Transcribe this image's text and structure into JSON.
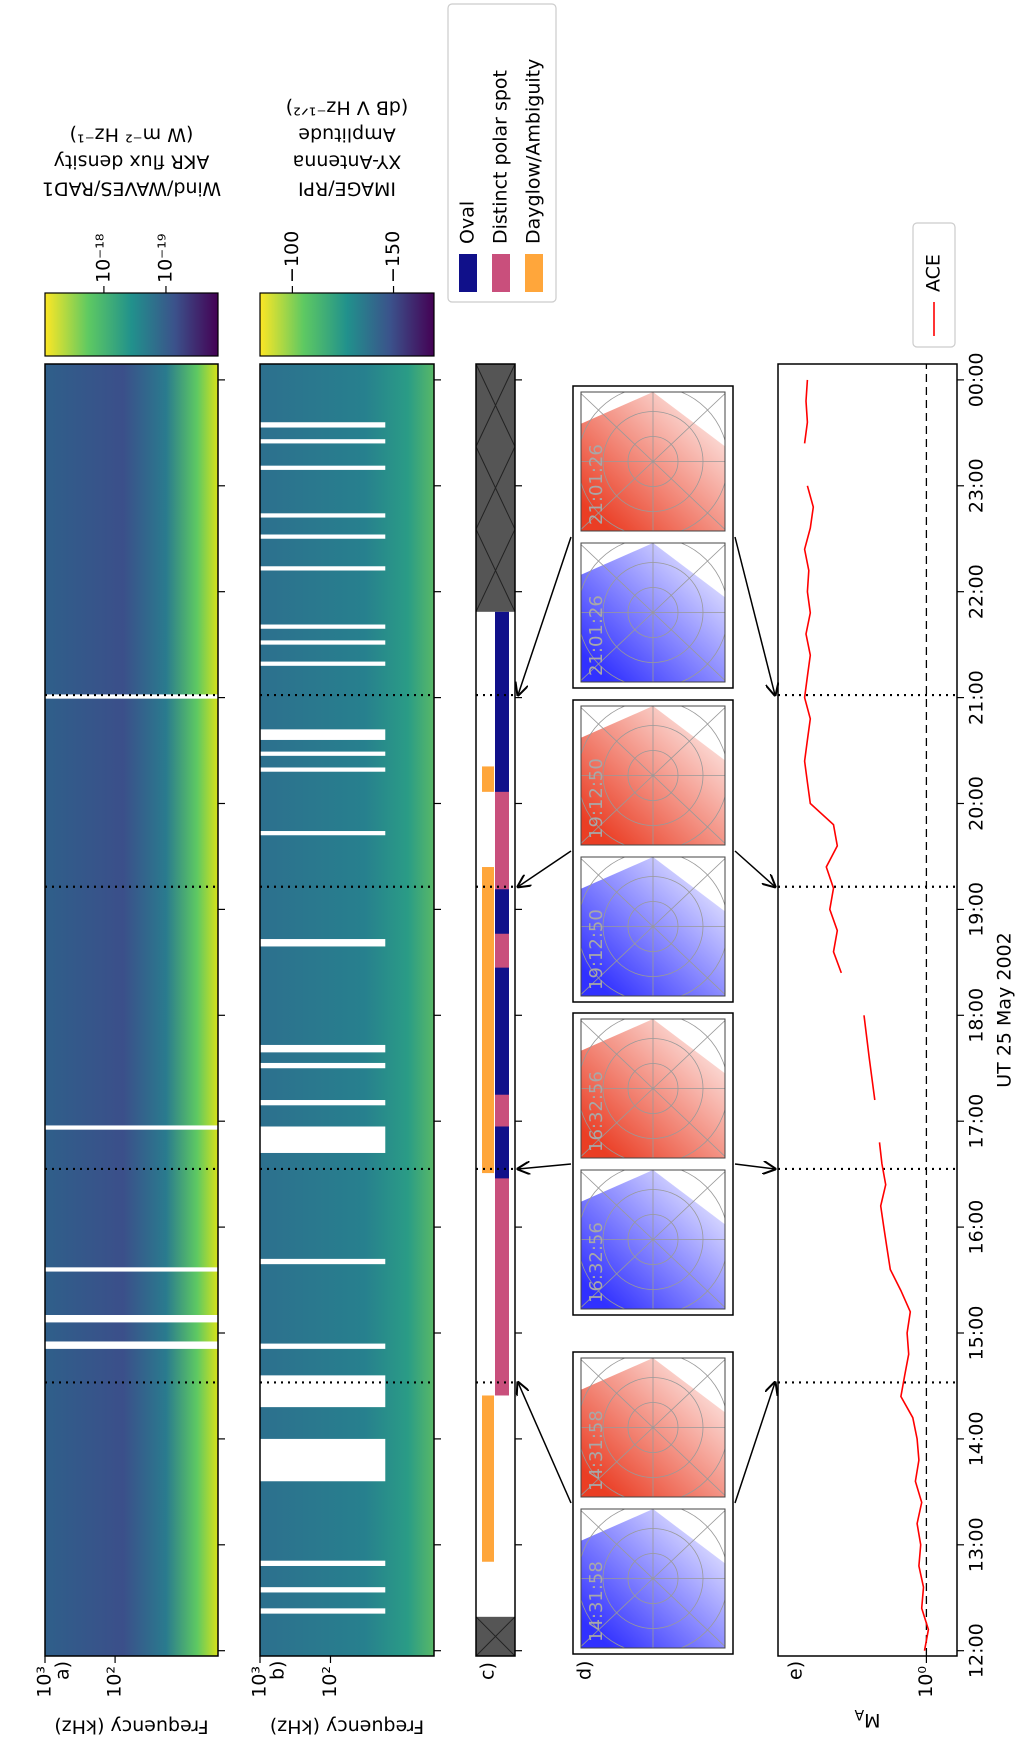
{
  "chart_data": [
    {
      "type": "heatmap",
      "panel_label": "a)",
      "ylabel": "Frequency (kHz)",
      "log_y": true,
      "ylim": [
        3.4,
        1000
      ],
      "yticks": [
        {
          "value": 1000,
          "label": "10³"
        },
        {
          "value": 100,
          "label": "10²"
        }
      ],
      "colorbar_label": [
        "Wind/WAVES/RAD1",
        "AKR flux density",
        "(W m⁻² Hz⁻¹)"
      ],
      "colorbar_log": true,
      "colorbar_lim": [
        1.45e-20,
        8.9e-18
      ],
      "colorbar_ticks": [
        {
          "value": 1e-18,
          "label": "10⁻¹⁸"
        },
        {
          "value": 1e-19,
          "label": "10⁻¹⁹"
        }
      ],
      "data_gaps": [
        [
          14.85,
          14.92
        ],
        [
          15.1,
          15.17
        ],
        [
          15.58,
          15.62
        ],
        [
          16.92,
          16.96
        ],
        [
          20.99,
          21.03
        ]
      ]
    },
    {
      "type": "heatmap",
      "panel_label": "b)",
      "ylabel": "Frequency (kHz)",
      "log_y": true,
      "ylim": [
        3.4,
        1000
      ],
      "yticks": [
        {
          "value": 1000,
          "label": "10³"
        },
        {
          "value": 100,
          "label": "10²"
        }
      ],
      "colorbar_label": [
        "IMAGE/RPI",
        "XY-Antenna",
        "Amplitude",
        "(dB V Hz⁻¹ᐟ²)"
      ],
      "colorbar_log": false,
      "colorbar_lim": [
        -170,
        -84
      ],
      "colorbar_ticks": [
        {
          "value": -100,
          "label": "−100"
        },
        {
          "value": -150,
          "label": "−150"
        }
      ],
      "data_gaps": [
        [
          12.35,
          12.4
        ],
        [
          12.55,
          12.6
        ],
        [
          12.8,
          12.85
        ],
        [
          13.6,
          14.0
        ],
        [
          14.3,
          14.6
        ],
        [
          14.85,
          14.9
        ],
        [
          15.65,
          15.7
        ],
        [
          16.7,
          16.95
        ],
        [
          17.15,
          17.2
        ],
        [
          17.5,
          17.55
        ],
        [
          17.65,
          17.72
        ],
        [
          18.65,
          18.72
        ],
        [
          19.7,
          19.74
        ],
        [
          20.3,
          20.34
        ],
        [
          20.45,
          20.49
        ],
        [
          20.6,
          20.7
        ],
        [
          21.3,
          21.34
        ],
        [
          21.5,
          21.54
        ],
        [
          21.65,
          21.69
        ],
        [
          22.2,
          22.24
        ],
        [
          22.5,
          22.54
        ],
        [
          22.7,
          22.74
        ],
        [
          23.15,
          23.19
        ],
        [
          23.4,
          23.44
        ],
        [
          23.55,
          23.6
        ]
      ]
    },
    {
      "type": "broken_bar",
      "panel_label": "c)",
      "series": [
        {
          "name": "Oval",
          "color": "#10108a",
          "row": 1,
          "intervals": [
            [
              16.11,
              21.81
            ]
          ]
        },
        {
          "name": "Distinct polar spot",
          "color": "#c94f7c",
          "row": 1,
          "intervals": [
            [
              14.41,
              16.46
            ],
            [
              16.95,
              17.25
            ],
            [
              18.45,
              18.77
            ],
            [
              19.19,
              20.11
            ]
          ]
        },
        {
          "name": "Dayglow/Ambiguity",
          "color": "#ffa63b",
          "row": 0,
          "intervals": [
            [
              12.84,
              14.41
            ],
            [
              16.51,
              19.4
            ],
            [
              20.11,
              20.35
            ]
          ]
        }
      ],
      "no_coverage": [
        [
          11.95,
          12.32
        ],
        [
          21.81,
          24.15
        ]
      ],
      "no_coverage_color": "#555555"
    },
    {
      "type": "image_pairs",
      "panel_label": "d)",
      "images": [
        {
          "label": "14:31:58",
          "color": "#1a1aff"
        },
        {
          "label": "14:31:58",
          "color": "#e8280c"
        },
        {
          "label": "16:32:56",
          "color": "#1a1aff"
        },
        {
          "label": "16:32:56",
          "color": "#e8280c"
        },
        {
          "label": "19:12:50",
          "color": "#1a1aff"
        },
        {
          "label": "19:12:50",
          "color": "#e8280c"
        },
        {
          "label": "21:01:26",
          "color": "#1a1aff"
        },
        {
          "label": "21:01:26",
          "color": "#e8280c"
        }
      ]
    },
    {
      "type": "line",
      "panel_label": "e)",
      "ylabel": "M",
      "ylabel_sub": "A",
      "log_y": true,
      "ylim": [
        0.73,
        4.6
      ],
      "yticks": [
        {
          "value": 1,
          "label": "10⁰"
        }
      ],
      "hline": 1,
      "xlabel": "UT 25 May 2002",
      "xlim": [
        11.95,
        24.15
      ],
      "xticks": [
        {
          "value": 12,
          "label": "12:00"
        },
        {
          "value": 13,
          "label": "13:00"
        },
        {
          "value": 14,
          "label": "14:00"
        },
        {
          "value": 15,
          "label": "15:00"
        },
        {
          "value": 16,
          "label": "16:00"
        },
        {
          "value": 17,
          "label": "17:00"
        },
        {
          "value": 18,
          "label": "18:00"
        },
        {
          "value": 19,
          "label": "19:00"
        },
        {
          "value": 20,
          "label": "20:00"
        },
        {
          "value": 21,
          "label": "21:00"
        },
        {
          "value": 22,
          "label": "22:00"
        },
        {
          "value": 23,
          "label": "23:00"
        },
        {
          "value": 24,
          "label": "00:00"
        }
      ],
      "vlines": [
        14.533,
        16.549,
        19.214,
        21.024
      ],
      "legend": "lower right",
      "x": [
        12.0,
        12.2,
        12.4,
        12.6,
        12.8,
        13.0,
        13.2,
        13.4,
        13.6,
        13.8,
        14.0,
        14.2,
        14.4,
        14.6,
        14.8,
        15.0,
        15.2,
        15.4,
        15.6,
        15.8,
        16.0,
        16.2,
        16.4,
        16.6,
        16.8,
        17.0,
        17.2,
        17.4,
        17.6,
        17.8,
        18.0,
        18.2,
        18.4,
        18.6,
        18.8,
        19.0,
        19.2,
        19.4,
        19.6,
        19.8,
        20.0,
        20.2,
        20.4,
        20.6,
        20.8,
        21.0,
        21.2,
        21.4,
        21.6,
        21.8,
        22.0,
        22.2,
        22.4,
        22.6,
        22.8,
        23.0,
        23.2,
        23.4,
        23.6,
        23.8,
        24.0
      ],
      "series": [
        {
          "name": "ACE",
          "color": "#ff0000",
          "values": [
            1.02,
            0.98,
            1.05,
            1.03,
            1.08,
            1.06,
            1.1,
            1.05,
            1.12,
            1.08,
            1.1,
            1.15,
            1.3,
            1.25,
            1.2,
            1.22,
            1.18,
            1.3,
            1.45,
            1.5,
            1.55,
            1.6,
            1.52,
            1.58,
            1.62,
            null,
            1.7,
            1.75,
            1.8,
            1.85,
            1.9,
            null,
            2.4,
            2.6,
            2.5,
            2.7,
            2.6,
            2.8,
            2.5,
            2.6,
            3.3,
            3.4,
            3.5,
            3.4,
            3.3,
            3.5,
            3.4,
            3.3,
            3.45,
            3.3,
            3.4,
            3.35,
            3.5,
            3.3,
            3.2,
            3.4,
            null,
            3.5,
            3.4,
            3.45,
            3.4
          ]
        }
      ]
    }
  ]
}
